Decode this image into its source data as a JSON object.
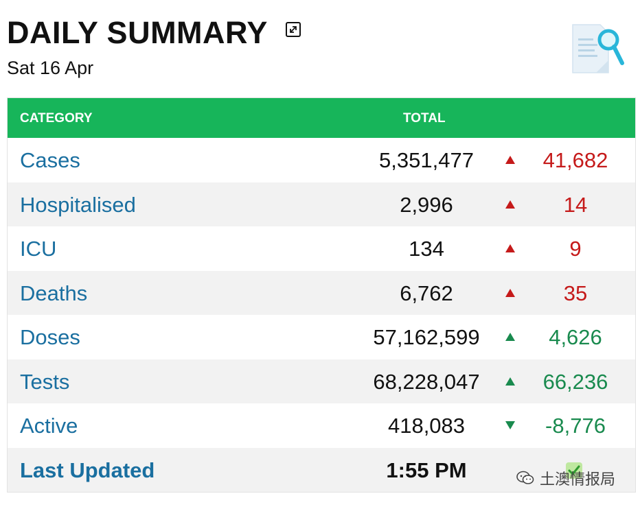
{
  "header": {
    "title": "DAILY SUMMARY",
    "date": "Sat 16 Apr"
  },
  "table": {
    "columns": {
      "category": "CATEGORY",
      "total": "TOTAL"
    },
    "rows": [
      {
        "category": "Cases",
        "total": "5,351,477",
        "trend": "up",
        "delta": "41,682",
        "delta_color": "#c51a1a"
      },
      {
        "category": "Hospitalised",
        "total": "2,996",
        "trend": "up",
        "delta": "14",
        "delta_color": "#c51a1a"
      },
      {
        "category": "ICU",
        "total": "134",
        "trend": "up",
        "delta": "9",
        "delta_color": "#c51a1a"
      },
      {
        "category": "Deaths",
        "total": "6,762",
        "trend": "up",
        "delta": "35",
        "delta_color": "#c51a1a"
      },
      {
        "category": "Doses",
        "total": "57,162,599",
        "trend": "up",
        "delta": "4,626",
        "delta_color": "#198a4e"
      },
      {
        "category": "Tests",
        "total": "68,228,047",
        "trend": "up",
        "delta": "66,236",
        "delta_color": "#198a4e"
      },
      {
        "category": "Active",
        "total": "418,083",
        "trend": "down",
        "delta": "-8,776",
        "delta_color": "#198a4e"
      }
    ],
    "last_updated": {
      "label": "Last Updated",
      "value": "1:55 PM"
    }
  },
  "watermark": {
    "text": "土澳情报局"
  },
  "colors": {
    "header_green": "#17b55a",
    "category_blue": "#1a6fa0",
    "up_red": "#c51a1a",
    "green": "#198a4e"
  }
}
